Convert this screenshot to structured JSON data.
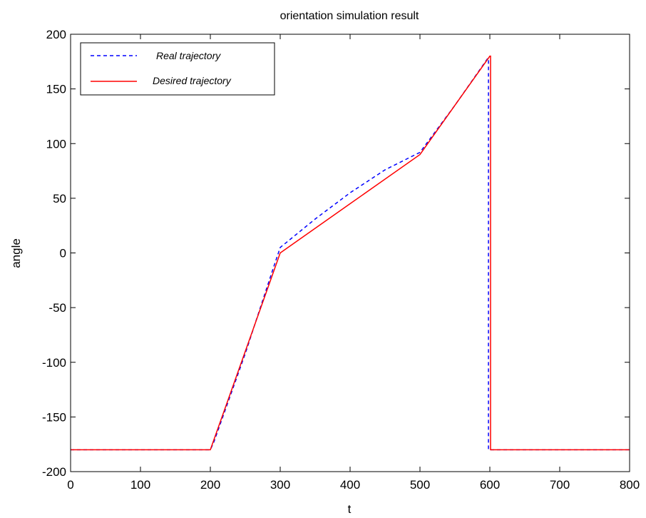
{
  "chart_data": {
    "type": "line",
    "title": "orientation simulation result",
    "xlabel": "t",
    "ylabel": "angle",
    "xlim": [
      0,
      800
    ],
    "ylim": [
      -200,
      200
    ],
    "xticks": [
      0,
      100,
      200,
      300,
      400,
      500,
      600,
      700,
      800
    ],
    "yticks": [
      200,
      150,
      100,
      50,
      0,
      -50,
      -100,
      -150,
      -200
    ],
    "grid": false,
    "legend_position": "top-left",
    "series": [
      {
        "name": "Real trajectory",
        "color": "#0000ff",
        "line_style": "dashed",
        "x": [
          0,
          200,
          205,
          250,
          290,
          300,
          350,
          400,
          450,
          500,
          550,
          597,
          598,
          598,
          800
        ],
        "y": [
          -180,
          -180,
          -173,
          -92,
          -14,
          5,
          31,
          55,
          76,
          92,
          135,
          178,
          178,
          -180,
          -180
        ]
      },
      {
        "name": "Desired trajectory",
        "color": "#ff0000",
        "line_style": "solid",
        "x": [
          0,
          200,
          300,
          400,
          500,
          600,
          601,
          601,
          800
        ],
        "y": [
          -180,
          -180,
          0,
          45,
          90,
          180,
          180,
          -180,
          -180
        ]
      }
    ]
  }
}
